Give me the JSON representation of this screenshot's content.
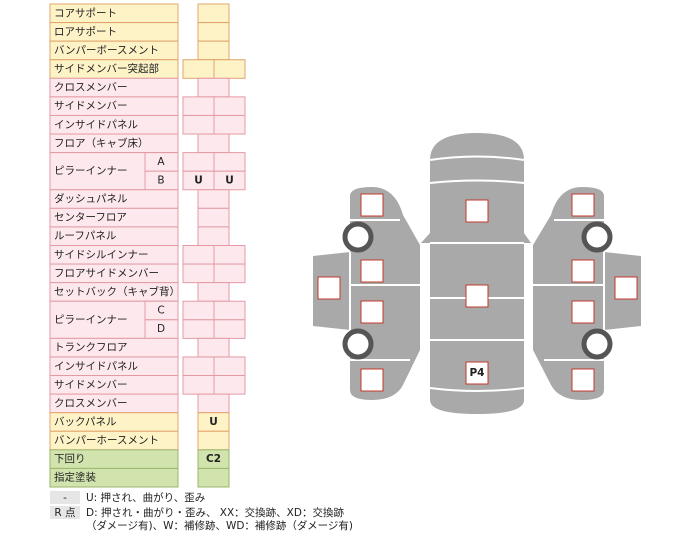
{
  "table": {
    "rows": [
      {
        "label": "コアサポート"
      },
      {
        "label": "ロアサポート"
      },
      {
        "label": "バンパーボースメント"
      },
      {
        "label": "サイドメンバー突起部"
      },
      {
        "label": "クロスメンバー"
      },
      {
        "label": "サイドメンバー"
      },
      {
        "label": "インサイドパネル"
      },
      {
        "label": "フロア（キャブ床）"
      },
      {
        "label": "ピラーインナー",
        "parts": [
          {
            "label": "A"
          },
          {
            "label": "B",
            "marks": [
              "U",
              "U"
            ]
          }
        ]
      },
      {
        "label": "ダッシュパネル"
      },
      {
        "label": "センターフロア"
      },
      {
        "label": "ルーフパネル"
      },
      {
        "label": "サイドシルインナー"
      },
      {
        "label": "フロアサイドメンバー"
      },
      {
        "label": "セットバック（キャブ背）"
      },
      {
        "label": "ピラーインナー",
        "parts": [
          {
            "label": "C"
          },
          {
            "label": "D"
          }
        ]
      },
      {
        "label": "トランクフロア"
      },
      {
        "label": "インサイドパネル"
      },
      {
        "label": "サイドメンバー"
      },
      {
        "label": "クロスメンバー"
      },
      {
        "label": "バックパネル",
        "marks": [
          "U"
        ]
      },
      {
        "label": "バンパーホースメント"
      },
      {
        "label": "下回り",
        "marks": [
          "C2"
        ]
      },
      {
        "label": "指定塗装"
      }
    ]
  },
  "legend": {
    "items": [
      {
        "key": "-",
        "lines": [
          "U: 押され、曲がり、歪み"
        ]
      },
      {
        "key": "R 点",
        "lines": [
          "D: 押され・曲がり・歪み、 XX：交換跡、XD：交換跡",
          "（ダメージ有)、W：補修跡、WD：補修跡（ダメージ有)"
        ]
      }
    ]
  },
  "diagram": {
    "labels": [
      "P4"
    ]
  }
}
